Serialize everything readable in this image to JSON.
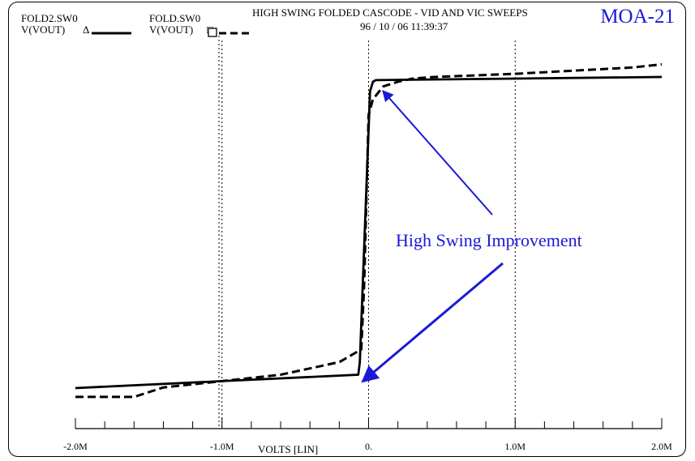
{
  "header": {
    "title": "HIGH SWING FOLDED CASCODE - VID AND VIC SWEEPS",
    "date": "96 / 10 / 06   11:39:37",
    "badge": "MOA-21"
  },
  "legend": [
    {
      "file": "FOLD2.SW0",
      "signal": "V(VOUT)",
      "marker": "Δ",
      "style": "solid"
    },
    {
      "file": "FOLD.SW0",
      "signal": "V(VOUT)",
      "marker": "□",
      "style": "dashed"
    }
  ],
  "annotation": {
    "label": "High Swing Improvement",
    "color": "#1a1ad6"
  },
  "chart_data": {
    "type": "line",
    "title": "HIGH SWING FOLDED CASCODE - VID AND VIC SWEEPS",
    "xlabel": "VOLTS [LIN]",
    "ylabel": "",
    "xlim": [
      -2.0,
      2.0
    ],
    "ylim": [
      0,
      1
    ],
    "x_tick_labels": [
      {
        "value": -2.0,
        "label": "-2.0M"
      },
      {
        "value": -1.0,
        "label": "-1.0M"
      },
      {
        "value": 0.0,
        "label": "0."
      },
      {
        "value": 1.0,
        "label": "1.0M"
      },
      {
        "value": 2.0,
        "label": "2.0M"
      }
    ],
    "x_minor_step": 0.2,
    "gridlines_x": [
      -1.0,
      0.0,
      1.0
    ],
    "y_visible": false,
    "series": [
      {
        "name": "V(VOUT)",
        "file": "FOLD2.SW0",
        "style": "solid",
        "points": [
          [
            -2.0,
            0.018
          ],
          [
            -1.0,
            0.04
          ],
          [
            -0.07,
            0.06
          ],
          [
            -0.06,
            0.1
          ],
          [
            0.01,
            0.955
          ],
          [
            0.03,
            0.985
          ],
          [
            0.05,
            0.99
          ],
          [
            2.0,
            1.0
          ]
        ]
      },
      {
        "name": "V(VOUT)",
        "file": "FOLD.SW0",
        "style": "dashed",
        "points": [
          [
            -2.0,
            -0.01
          ],
          [
            -1.6,
            -0.01
          ],
          [
            -1.4,
            0.02
          ],
          [
            -1.0,
            0.04
          ],
          [
            -0.6,
            0.06
          ],
          [
            -0.4,
            0.08
          ],
          [
            -0.2,
            0.1
          ],
          [
            -0.05,
            0.14
          ],
          [
            -0.03,
            0.35
          ],
          [
            0.0,
            0.88
          ],
          [
            0.03,
            0.93
          ],
          [
            0.1,
            0.97
          ],
          [
            0.2,
            0.985
          ],
          [
            0.3,
            0.995
          ],
          [
            0.45,
            1.0
          ],
          [
            1.0,
            1.01
          ],
          [
            1.4,
            1.02
          ],
          [
            1.8,
            1.03
          ],
          [
            2.0,
            1.04
          ]
        ]
      }
    ]
  }
}
